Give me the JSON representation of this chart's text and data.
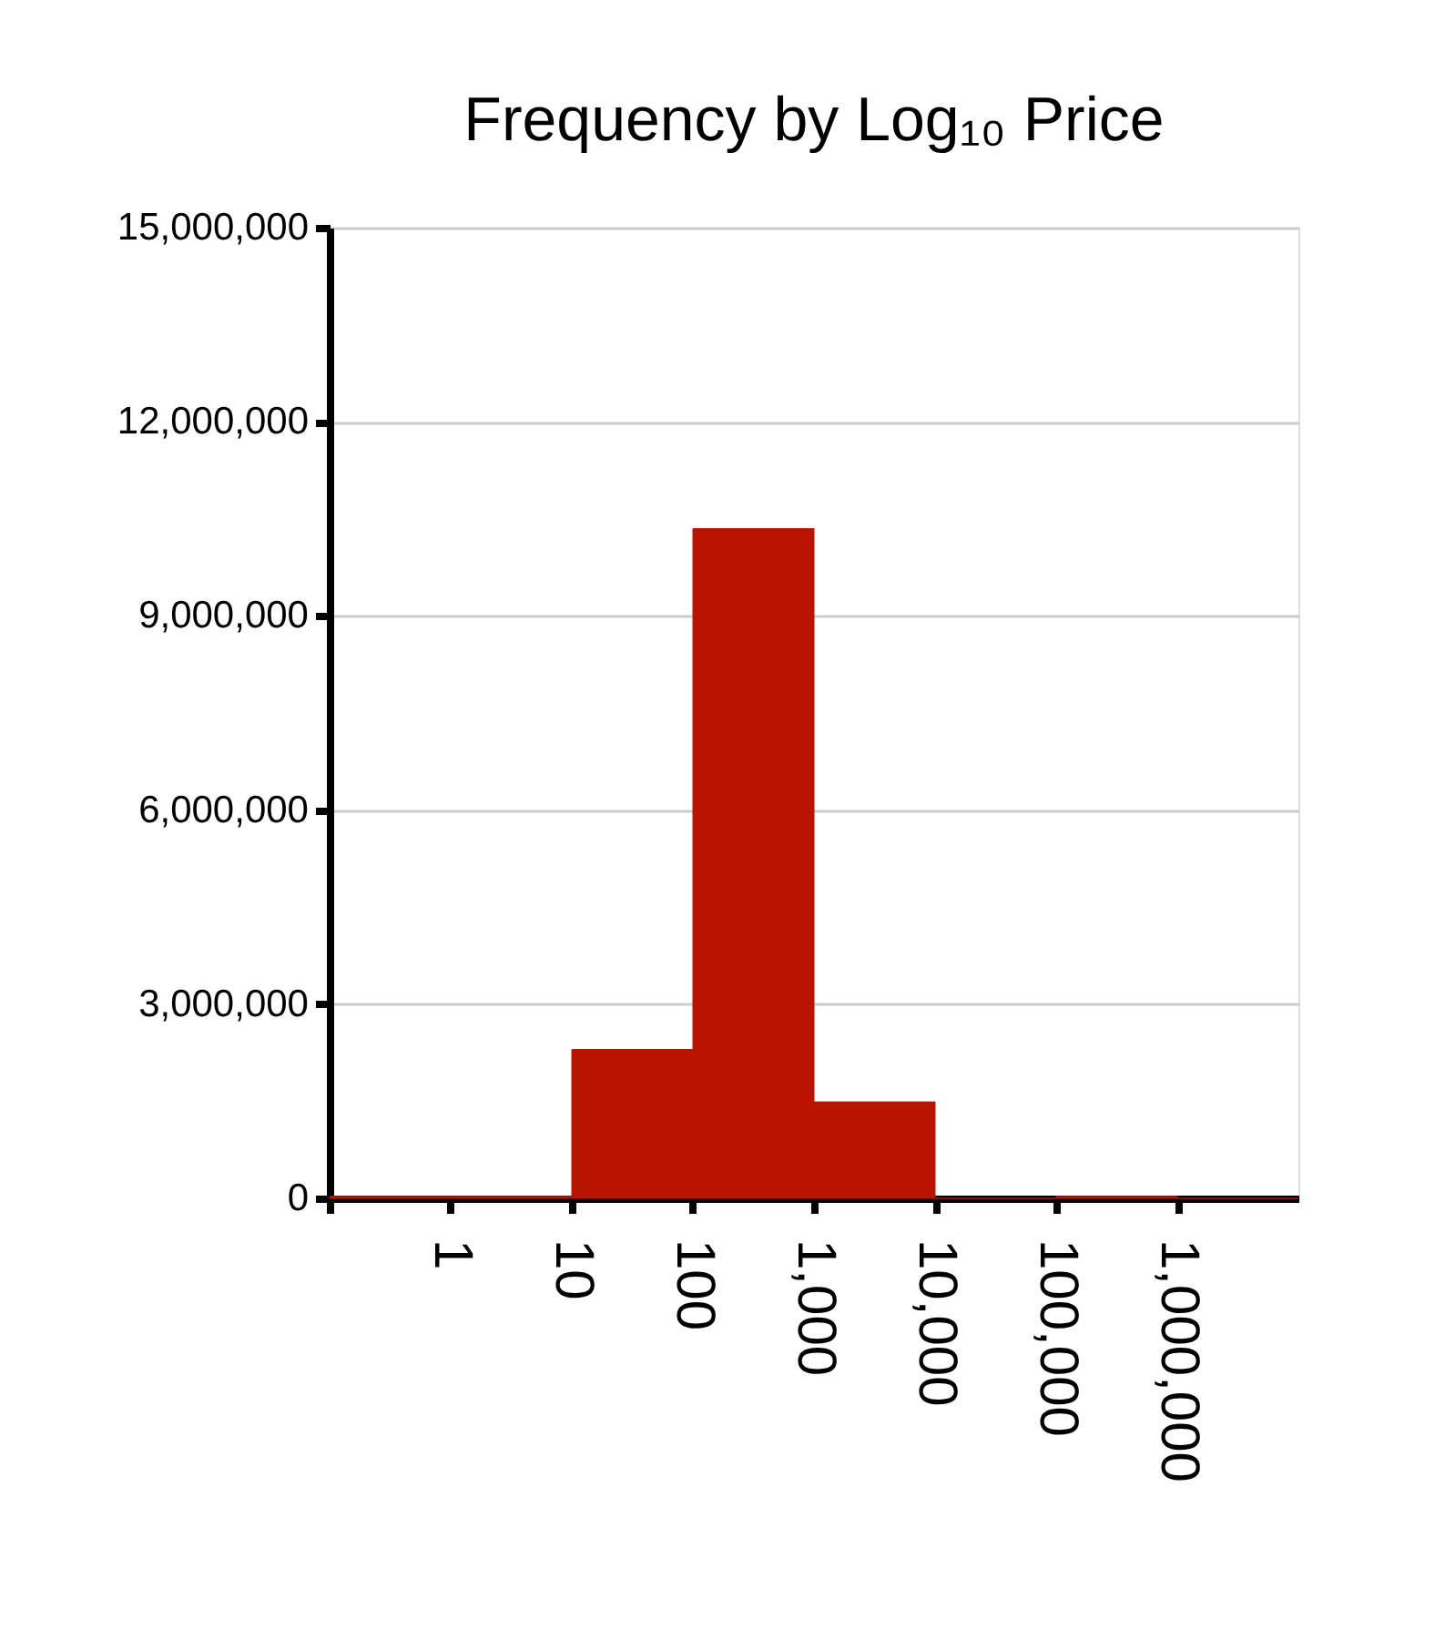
{
  "chart_data": {
    "type": "histogram",
    "title": "Frequency by Log₁₀ Price",
    "bins": [
      0.1,
      1,
      10,
      100,
      1000,
      10000,
      100000,
      1000000,
      10000000
    ],
    "values": [
      30000,
      30000,
      2300000,
      10350000,
      1490000,
      0,
      30000,
      0
    ],
    "color": "#b81400",
    "log": "x",
    "xlim": [
      0.1,
      10000000
    ],
    "xticks": [
      {
        "value": 0.1,
        "label": null
      },
      1,
      10,
      100,
      {
        "value": 1000,
        "label": "1,000"
      },
      {
        "value": 10000,
        "label": "10,000"
      },
      {
        "value": 100000,
        "label": "100,000"
      },
      {
        "value": 1000000,
        "label": "1,000,000"
      }
    ],
    "ylim": [
      0,
      15000000
    ],
    "yticks": [
      0,
      {
        "value": 3000000,
        "label": "3,000,000"
      },
      {
        "value": 6000000,
        "label": "6,000,000"
      },
      {
        "value": 9000000,
        "label": "9,000,000"
      },
      {
        "value": 12000000,
        "label": "12,000,000"
      },
      {
        "value": 15000000,
        "label": "15,000,000"
      }
    ],
    "grid": "y"
  }
}
